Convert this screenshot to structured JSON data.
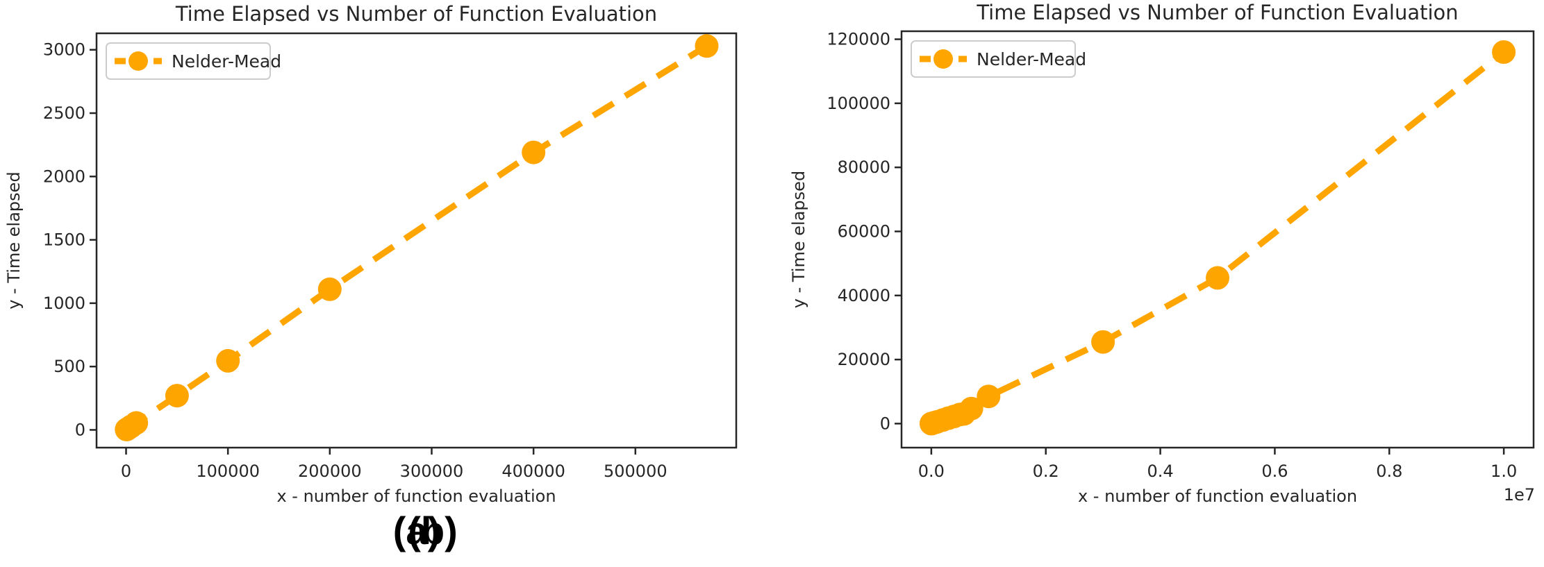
{
  "colors": {
    "background": "#ffffff",
    "accent": "#FFA500",
    "text": "#262626",
    "spine": "#262626",
    "legend_border": "#cccccc",
    "sublabel_text": "#000000"
  },
  "figure_labels": {
    "a": "(a)",
    "b": "(b)"
  },
  "chart_data": [
    {
      "id": "a",
      "type": "line",
      "title": "Time Elapsed vs Number of Function Evaluation",
      "xlabel": "x - number of function evaluation",
      "ylabel": "y - Time elapsed",
      "grid": false,
      "legend": {
        "position": "upper left",
        "entries": [
          {
            "label": "Nelder-Mead",
            "color": "#FFA500"
          }
        ]
      },
      "xlim": [
        -29000,
        599000
      ],
      "ylim": [
        -140,
        3130
      ],
      "xticks": {
        "values": [
          0,
          100000,
          200000,
          300000,
          400000,
          500000
        ],
        "labels": [
          "0",
          "100000",
          "200000",
          "300000",
          "400000",
          "500000"
        ]
      },
      "yticks": {
        "values": [
          0,
          500,
          1000,
          1500,
          2000,
          2500,
          3000
        ],
        "labels": [
          "0",
          "500",
          "1000",
          "1500",
          "2000",
          "2500",
          "3000"
        ]
      },
      "x_offset_label": "",
      "series": [
        {
          "name": "Nelder-Mead",
          "color": "#FFA500",
          "line_style": "dashed",
          "marker": "circle",
          "points": [
            [
              500,
              3
            ],
            [
              2000,
              11
            ],
            [
              5000,
              27
            ],
            [
              10000,
              55
            ],
            [
              50000,
              270
            ],
            [
              100000,
              545
            ],
            [
              200000,
              1110
            ],
            [
              400000,
              2190
            ],
            [
              570000,
              3030
            ]
          ]
        }
      ]
    },
    {
      "id": "b",
      "type": "line",
      "title": "Time Elapsed vs Number of Function Evaluation",
      "xlabel": "x - number of function evaluation",
      "ylabel": "y - Time elapsed",
      "grid": false,
      "legend": {
        "position": "upper left",
        "entries": [
          {
            "label": "Nelder-Mead",
            "color": "#FFA500"
          }
        ]
      },
      "xlim": [
        -520000,
        10520000
      ],
      "ylim": [
        -7500,
        122500
      ],
      "xticks": {
        "values": [
          0,
          2000000,
          4000000,
          6000000,
          8000000,
          10000000
        ],
        "labels": [
          "0.0",
          "0.2",
          "0.4",
          "0.6",
          "0.8",
          "1.0"
        ]
      },
      "yticks": {
        "values": [
          0,
          20000,
          40000,
          60000,
          80000,
          100000,
          120000
        ],
        "labels": [
          "0",
          "20000",
          "40000",
          "60000",
          "80000",
          "100000",
          "120000"
        ]
      },
      "x_offset_label": "1e7",
      "series": [
        {
          "name": "Nelder-Mead",
          "color": "#FFA500",
          "line_style": "dashed",
          "marker": "circle",
          "points": [
            [
              500,
              3
            ],
            [
              5000,
              27
            ],
            [
              10000,
              55
            ],
            [
              50000,
              270
            ],
            [
              100000,
              545
            ],
            [
              200000,
              1100
            ],
            [
              300000,
              1700
            ],
            [
              400000,
              2250
            ],
            [
              500000,
              2850
            ],
            [
              570000,
              3030
            ],
            [
              700000,
              4700
            ],
            [
              1000000,
              8500
            ],
            [
              3000000,
              25500
            ],
            [
              5000000,
              45500
            ],
            [
              10000000,
              116000
            ]
          ]
        }
      ]
    }
  ]
}
